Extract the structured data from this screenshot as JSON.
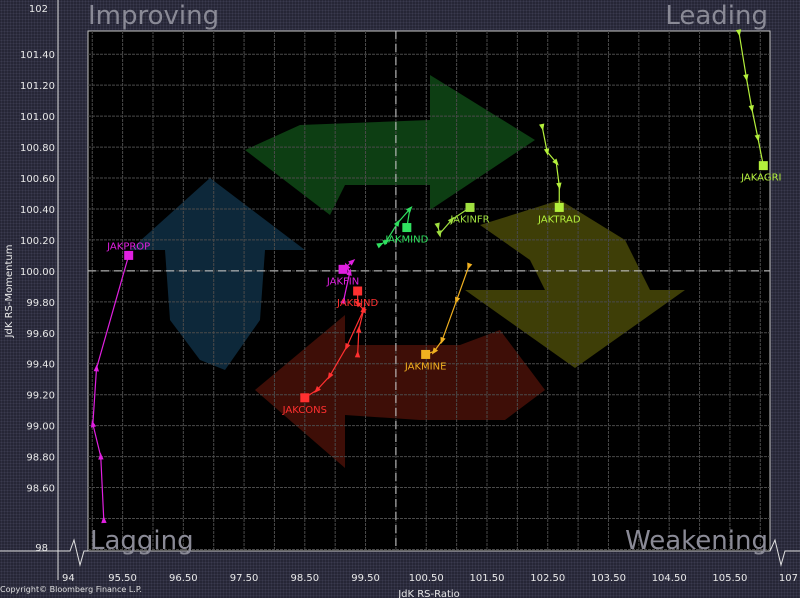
{
  "chart_data": {
    "type": "scatter",
    "subtype": "relative-rotation-graph",
    "xlabel": "JdK RS-Ratio",
    "ylabel": "JdK RS-Momentum",
    "xlim": [
      94.93,
      106.16
    ],
    "ylim": [
      98.19,
      101.55
    ],
    "x_axis_break_labels": [
      "94",
      "107"
    ],
    "y_axis_break_labels": [
      "98",
      "102"
    ],
    "x_ticks": [
      "95.50",
      "96.50",
      "97.50",
      "98.50",
      "99.50",
      "100.50",
      "101.50",
      "102.50",
      "103.50",
      "104.50",
      "105.50"
    ],
    "y_ticks": [
      "98.60",
      "98.80",
      "99.00",
      "99.20",
      "99.40",
      "99.60",
      "99.80",
      "100.00",
      "100.20",
      "100.40",
      "100.60",
      "100.80",
      "101.00",
      "101.20",
      "101.40"
    ],
    "center": [
      100,
      100
    ],
    "grid": true,
    "quadrants": {
      "top_left": "Improving",
      "top_right": "Leading",
      "bottom_left": "Lagging",
      "bottom_right": "Weakening"
    },
    "series": [
      {
        "name": "JAKPROP",
        "color": "#e020e0",
        "x": [
          95.19,
          95.14,
          95.01,
          95.07,
          95.6
        ],
        "y": [
          98.39,
          98.8,
          99.01,
          99.37,
          100.1
        ]
      },
      {
        "name": "JAKAGRI",
        "color": "#b4f03c",
        "x": [
          105.65,
          105.77,
          105.86,
          105.96,
          106.05
        ],
        "y": [
          101.54,
          101.25,
          101.05,
          100.86,
          100.68
        ]
      },
      {
        "name": "JAKTRAD",
        "color": "#b4f03c",
        "x": [
          102.41,
          102.49,
          102.64,
          102.69,
          102.69
        ],
        "y": [
          100.93,
          100.77,
          100.7,
          100.55,
          100.41
        ]
      },
      {
        "name": "JAKINFR",
        "color": "#a0e040",
        "x": [
          100.69,
          100.72,
          100.92,
          101.22
        ],
        "y": [
          100.29,
          100.24,
          100.33,
          100.41
        ]
      },
      {
        "name": "JAKMIND",
        "color": "#30e060",
        "x": [
          99.74,
          99.84,
          100.03,
          100.23,
          100.18
        ],
        "y": [
          100.17,
          100.19,
          100.31,
          100.4,
          100.28
        ]
      },
      {
        "name": "JAKFIN",
        "color": "#e020e0",
        "x": [
          99.14,
          99.24,
          99.19,
          99.28,
          99.13
        ],
        "y": [
          99.81,
          99.99,
          100.03,
          100.06,
          100.01
        ]
      },
      {
        "name": "JAKBIND",
        "color": "#ff3030",
        "x": [
          99.37,
          99.39,
          99.47,
          99.37,
          99.37
        ],
        "y": [
          99.46,
          99.62,
          99.75,
          99.79,
          99.87
        ]
      },
      {
        "name": "JAKCONS",
        "color": "#ff3030",
        "x": [
          99.46,
          99.19,
          98.91,
          98.7,
          98.5
        ],
        "y": [
          99.74,
          99.51,
          99.32,
          99.23,
          99.18
        ]
      },
      {
        "name": "JAKMINE",
        "color": "#f0b020",
        "x": [
          101.2,
          101.0,
          100.76,
          100.63,
          100.49
        ],
        "y": [
          100.03,
          99.81,
          99.55,
          99.48,
          99.46
        ]
      }
    ]
  },
  "copyright": "Copyright© Bloomberg Finance L.P."
}
